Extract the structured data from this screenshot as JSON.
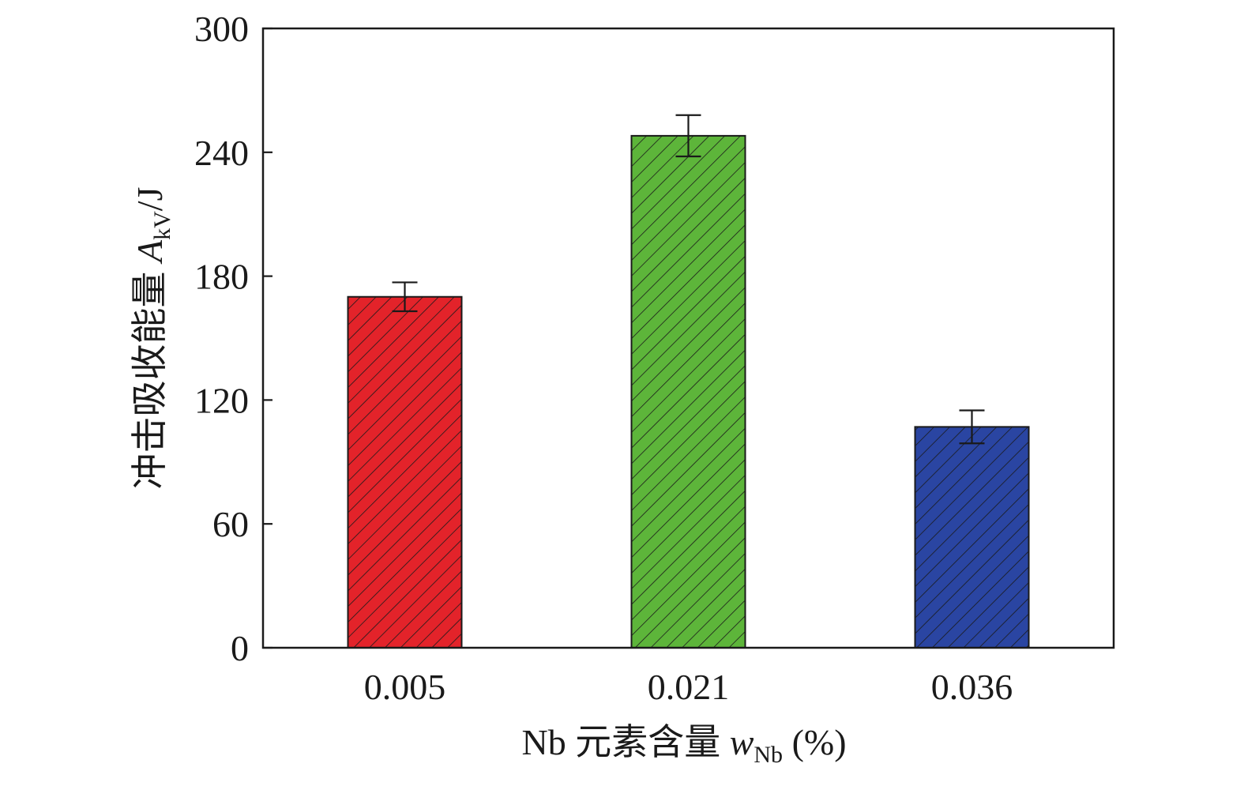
{
  "chart_data": {
    "type": "bar",
    "categories": [
      "0.005",
      "0.021",
      "0.036"
    ],
    "values": [
      170,
      248,
      107
    ],
    "error": [
      7,
      10,
      8
    ],
    "colors": [
      "#e3232a",
      "#5db53a",
      "#2a45a2"
    ],
    "hatch": "diagonal",
    "xlabel": {
      "main": "Nb 元素含量 ",
      "var": "w",
      "sub": "Nb",
      "unit": " (%)"
    },
    "ylabel": {
      "main": "冲击吸收能量 ",
      "var": "A",
      "sub": "kV",
      "unit": "/J"
    },
    "ylim": [
      0,
      300
    ],
    "yticks": [
      "0",
      "60",
      "120",
      "180",
      "240",
      "300"
    ],
    "grid": false,
    "legend": "none"
  }
}
